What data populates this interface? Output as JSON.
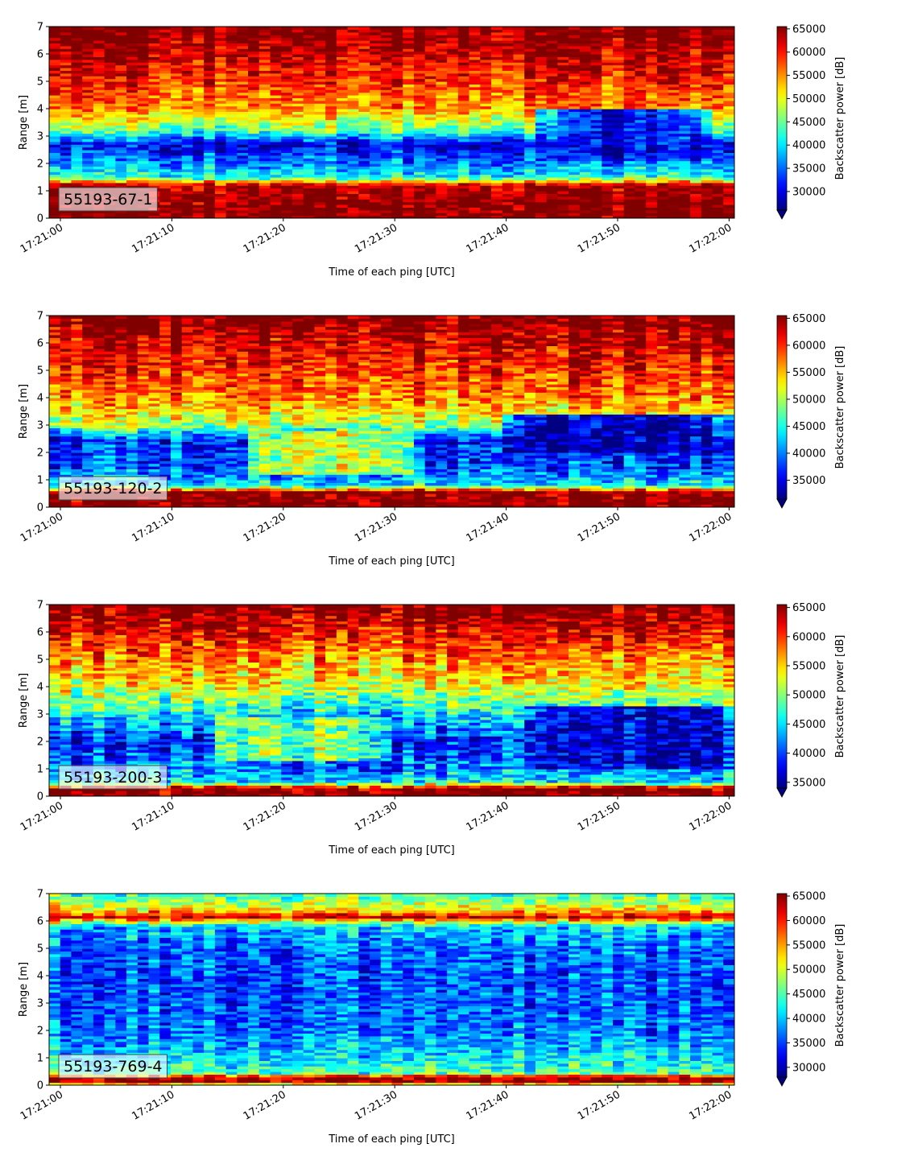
{
  "chart_data": [
    {
      "type": "heatmap",
      "label": "55193-67-1",
      "xlabel": "Time of each ping [UTC]",
      "ylabel": "Range [m]",
      "x_ticks": [
        "17:21:00",
        "17:21:10",
        "17:21:20",
        "17:21:30",
        "17:21:40",
        "17:21:50",
        "17:22:00"
      ],
      "y_ticks": [
        "0",
        "1",
        "2",
        "3",
        "4",
        "5",
        "6",
        "7"
      ],
      "ylim": [
        0,
        7
      ],
      "colorbar_label": "Backscatter power [dB]",
      "colorbar_ticks": [
        "30000",
        "35000",
        "40000",
        "45000",
        "50000",
        "55000",
        "60000",
        "65000"
      ],
      "clim": [
        26000,
        65500
      ],
      "colormap": "jet",
      "profile": [
        {
          "range": 0.0,
          "value": 66000
        },
        {
          "range": 0.25,
          "value": 66000
        },
        {
          "range": 1.2,
          "value": 64000
        },
        {
          "range": 1.5,
          "value": 42000
        },
        {
          "range": 2.0,
          "value": 36000
        },
        {
          "range": 2.7,
          "value": 30000
        },
        {
          "range": 3.2,
          "value": 44000
        },
        {
          "range": 4.0,
          "value": 55000
        },
        {
          "range": 5.0,
          "value": 59000
        },
        {
          "range": 6.0,
          "value": 63000
        },
        {
          "range": 7.0,
          "value": 66000
        }
      ],
      "features": [
        {
          "type": "low_patch",
          "t0": 43,
          "t1": 58,
          "r0": 2.1,
          "r1": 4.0,
          "value": 30000
        }
      ]
    },
    {
      "type": "heatmap",
      "label": "55193-120-2",
      "xlabel": "Time of each ping [UTC]",
      "ylabel": "Range [m]",
      "x_ticks": [
        "17:21:00",
        "17:21:10",
        "17:21:20",
        "17:21:30",
        "17:21:40",
        "17:21:50",
        "17:22:00"
      ],
      "y_ticks": [
        "0",
        "1",
        "2",
        "3",
        "4",
        "5",
        "6",
        "7"
      ],
      "ylim": [
        0,
        7
      ],
      "colorbar_label": "Backscatter power [dB]",
      "colorbar_ticks": [
        "35000",
        "40000",
        "45000",
        "50000",
        "55000",
        "60000",
        "65000"
      ],
      "clim": [
        31500,
        65500
      ],
      "colormap": "jet",
      "profile": [
        {
          "range": 0.0,
          "value": 66000
        },
        {
          "range": 0.55,
          "value": 66000
        },
        {
          "range": 0.8,
          "value": 44000
        },
        {
          "range": 1.5,
          "value": 38000
        },
        {
          "range": 2.5,
          "value": 37000
        },
        {
          "range": 3.0,
          "value": 50000
        },
        {
          "range": 4.0,
          "value": 57000
        },
        {
          "range": 5.0,
          "value": 60000
        },
        {
          "range": 6.0,
          "value": 63000
        },
        {
          "range": 7.0,
          "value": 66000
        }
      ],
      "features": [
        {
          "type": "mid_plume",
          "t0": 17,
          "t1": 32,
          "r0": 1.2,
          "r1": 2.8,
          "value": 52000
        },
        {
          "type": "low_patch",
          "t0": 40,
          "t1": 60,
          "r0": 2.0,
          "r1": 3.4,
          "value": 33000
        }
      ]
    },
    {
      "type": "heatmap",
      "label": "55193-200-3",
      "xlabel": "Time of each ping [UTC]",
      "ylabel": "Range [m]",
      "x_ticks": [
        "17:21:00",
        "17:21:10",
        "17:21:20",
        "17:21:30",
        "17:21:40",
        "17:21:50",
        "17:22:00"
      ],
      "y_ticks": [
        "0",
        "1",
        "2",
        "3",
        "4",
        "5",
        "6",
        "7"
      ],
      "ylim": [
        0,
        7
      ],
      "colorbar_label": "Backscatter power [dB]",
      "colorbar_ticks": [
        "35000",
        "40000",
        "45000",
        "50000",
        "55000",
        "60000",
        "65000"
      ],
      "clim": [
        34000,
        65500
      ],
      "colormap": "jet",
      "profile": [
        {
          "range": 0.0,
          "value": 66000
        },
        {
          "range": 0.3,
          "value": 66000
        },
        {
          "range": 0.5,
          "value": 46000
        },
        {
          "range": 1.0,
          "value": 42000
        },
        {
          "range": 2.0,
          "value": 38000
        },
        {
          "range": 3.0,
          "value": 45000
        },
        {
          "range": 4.0,
          "value": 53000
        },
        {
          "range": 5.0,
          "value": 57000
        },
        {
          "range": 6.0,
          "value": 62000
        },
        {
          "range": 7.0,
          "value": 66000
        }
      ],
      "features": [
        {
          "type": "mid_plume",
          "t0": 14,
          "t1": 30,
          "r0": 1.3,
          "r1": 2.9,
          "value": 50000
        },
        {
          "type": "low_patch",
          "t0": 42,
          "t1": 60,
          "r0": 1.0,
          "r1": 3.3,
          "value": 36000
        }
      ]
    },
    {
      "type": "heatmap",
      "label": "55193-769-4",
      "xlabel": "Time of each ping [UTC]",
      "ylabel": "Range [m]",
      "x_ticks": [
        "17:21:00",
        "17:21:10",
        "17:21:20",
        "17:21:30",
        "17:21:40",
        "17:21:50",
        "17:22:00"
      ],
      "y_ticks": [
        "0",
        "1",
        "2",
        "3",
        "4",
        "5",
        "6",
        "7"
      ],
      "ylim": [
        0,
        7
      ],
      "colorbar_label": "Backscatter power [dB]",
      "colorbar_ticks": [
        "30000",
        "35000",
        "40000",
        "45000",
        "50000",
        "55000",
        "60000",
        "65000"
      ],
      "clim": [
        28000,
        65500
      ],
      "colormap": "jet",
      "profile": [
        {
          "range": 0.0,
          "value": 45000
        },
        {
          "range": 0.12,
          "value": 64000
        },
        {
          "range": 0.3,
          "value": 64000
        },
        {
          "range": 0.45,
          "value": 45000
        },
        {
          "range": 1.0,
          "value": 41000
        },
        {
          "range": 2.0,
          "value": 37000
        },
        {
          "range": 3.0,
          "value": 36000
        },
        {
          "range": 4.0,
          "value": 35500
        },
        {
          "range": 5.0,
          "value": 37000
        },
        {
          "range": 5.8,
          "value": 40000
        },
        {
          "range": 6.15,
          "value": 62000
        },
        {
          "range": 6.45,
          "value": 52000
        },
        {
          "range": 7.0,
          "value": 44000
        }
      ],
      "features": []
    }
  ]
}
